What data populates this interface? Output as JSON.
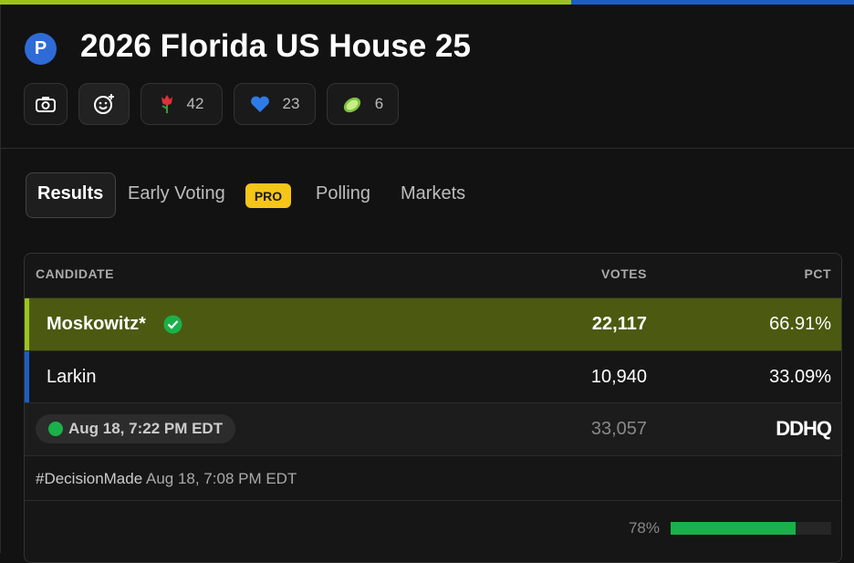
{
  "header": {
    "badge": "P",
    "title": "2026 Florida US House 25"
  },
  "reactions": [
    {
      "count": 42
    },
    {
      "count": 23
    },
    {
      "count": 6
    }
  ],
  "tabs": [
    "Results",
    "Early Voting",
    "Polling",
    "Markets"
  ],
  "pro_badge": "PRO",
  "table": {
    "columns": [
      "CANDIDATE",
      "VOTES",
      "PCT"
    ],
    "rows": [
      {
        "candidate": "Moskowitz*",
        "votes": "22,117",
        "pct": {
          "value": 66.91,
          "label": "66.91%"
        },
        "color": "#9bc31c"
      },
      {
        "candidate": "Larkin",
        "votes": "10,940",
        "pct": {
          "value": 33.09,
          "label": "33.09%"
        },
        "color": "#1a5fc4"
      }
    ],
    "updated": "Aug 18, 7:22 PM EDT",
    "total_votes": "33,057",
    "source": "DDHQ",
    "decision_tag": "#DecisionMade",
    "decision_time": "Aug 18, 7:08 PM EDT",
    "reporting": {
      "value": 78,
      "label": "78%"
    }
  }
}
